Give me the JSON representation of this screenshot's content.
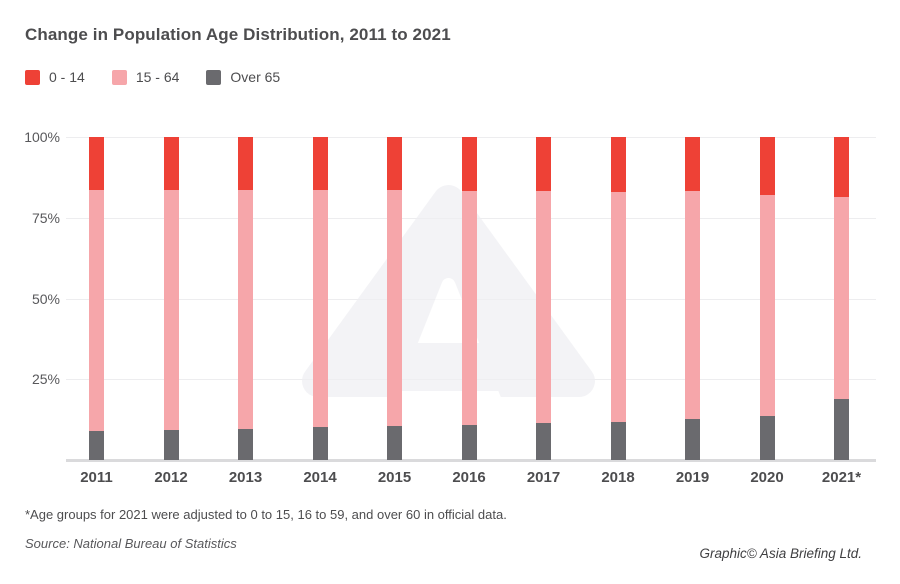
{
  "title": "Change in Population Age Distribution, 2011 to 2021",
  "legend": [
    {
      "label": "0 - 14",
      "color": "#ee4136"
    },
    {
      "label": "15 - 64",
      "color": "#f6a6aa"
    },
    {
      "label": "Over 65",
      "color": "#6a6a6e"
    }
  ],
  "chart_data": {
    "type": "bar",
    "stacked": true,
    "unit": "%",
    "categories": [
      "2011",
      "2012",
      "2013",
      "2014",
      "2015",
      "2016",
      "2017",
      "2018",
      "2019",
      "2020",
      "2021*"
    ],
    "series": [
      {
        "name": "0 - 14",
        "color": "#ee4136",
        "values": [
          16.5,
          16.5,
          16.4,
          16.5,
          16.5,
          16.7,
          16.8,
          16.9,
          16.8,
          17.9,
          18.6
        ]
      },
      {
        "name": "15 - 64",
        "color": "#f6a6aa",
        "values": [
          74.4,
          74.1,
          73.9,
          73.4,
          73.0,
          72.5,
          71.8,
          71.2,
          70.6,
          68.6,
          62.5
        ]
      },
      {
        "name": "Over 65",
        "color": "#6a6a6e",
        "values": [
          9.1,
          9.4,
          9.7,
          10.1,
          10.5,
          10.8,
          11.4,
          11.9,
          12.6,
          13.5,
          18.9
        ]
      }
    ],
    "title": "Change in Population Age Distribution, 2011 to 2021",
    "xlabel": "",
    "ylabel": "",
    "ylim": [
      0,
      100
    ],
    "y_ticks": [
      100,
      75,
      50,
      25
    ],
    "y_tick_labels": [
      "100%",
      "75%",
      "50%",
      "25%"
    ],
    "grid": true,
    "legend_position": "top-left"
  },
  "colors": {
    "gridline": "#ededef",
    "baseline": "#dadadc",
    "axis_text": "#58585b",
    "title_text": "#4d4d4f",
    "watermark": "#efeff3"
  },
  "footnote": "*Age groups for 2021 were adjusted to 0 to 15, 16 to 59, and over 60 in official data.",
  "source": "Source: National Bureau of Statistics",
  "credit": "Graphic© Asia Briefing Ltd."
}
